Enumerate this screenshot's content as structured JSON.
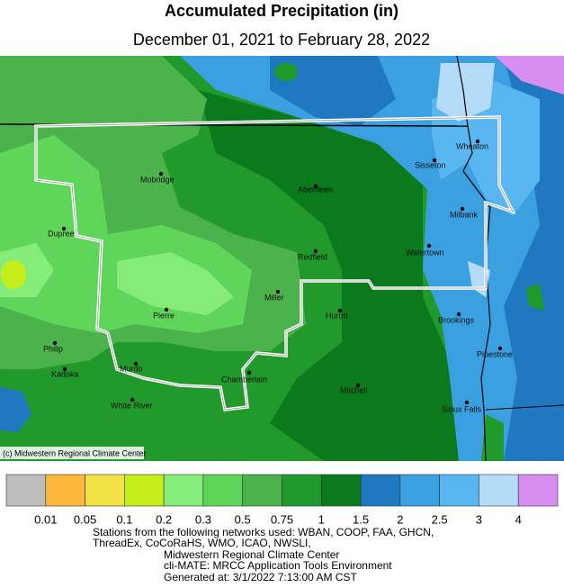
{
  "title": "Accumulated Precipitation (in)",
  "subtitle": "December 01, 2021 to February 28, 2022",
  "credit": "(c) Midwestern Regional Climate Center",
  "cities": [
    {
      "name": "Wheaton"
    },
    {
      "name": "Sisseton"
    },
    {
      "name": "Mobridge"
    },
    {
      "name": "Aberdeen"
    },
    {
      "name": "Milbank"
    },
    {
      "name": "Dupree"
    },
    {
      "name": "Watertown"
    },
    {
      "name": "Redfield"
    },
    {
      "name": "Miller"
    },
    {
      "name": "Pierre"
    },
    {
      "name": "Huron"
    },
    {
      "name": "Brookings"
    },
    {
      "name": "Philip"
    },
    {
      "name": "Pipestone"
    },
    {
      "name": "Kadoka"
    },
    {
      "name": "Murdo"
    },
    {
      "name": "Chamberlain"
    },
    {
      "name": "Mitchell"
    },
    {
      "name": "White River"
    },
    {
      "name": "Sioux Falls"
    }
  ],
  "legend": {
    "colors": [
      "#bdbdbd",
      "#fdb73b",
      "#f2e144",
      "#c6ee1a",
      "#86ec79",
      "#5fd65a",
      "#4cb24c",
      "#21992b",
      "#0b7a1c",
      "#1f78c0",
      "#3aa0e0",
      "#5ab6f0",
      "#b4dcf8",
      "#d88ef0"
    ],
    "labels": [
      "0.01",
      "0.05",
      "0.1",
      "0.2",
      "0.3",
      "0.5",
      "0.75",
      "1",
      "1.5",
      "2",
      "2.5",
      "3",
      "4"
    ]
  },
  "footer": [
    "Stations from the following networks used: WBAN, COOP, FAA, GHCN,",
    "ThreadEx, CoCoRaHS, WMO, ICAO, NWSLI,",
    "Midwestern Regional Climate Center",
    "cli-MATE: MRCC Application Tools Environment",
    "Generated at: 3/1/2022 7:13:00 AM CST"
  ]
}
